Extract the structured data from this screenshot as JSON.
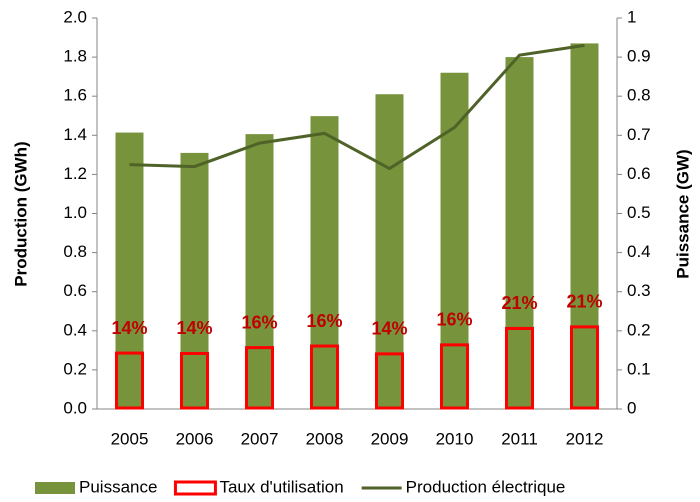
{
  "chart_data": {
    "type": "bar",
    "categories": [
      "2005",
      "2006",
      "2007",
      "2008",
      "2009",
      "2010",
      "2011",
      "2012"
    ],
    "y_label": "Production (GWh)",
    "y2_label": "Puissance (GW)",
    "ylim": [
      0,
      2
    ],
    "yticks": [
      {
        "value": 0,
        "label": "0.0"
      },
      0.2,
      0.4,
      0.6,
      0.8,
      {
        "value": 1,
        "label": "1.0"
      },
      1.2,
      1.4,
      1.6,
      1.8,
      {
        "value": 2,
        "label": "2.0"
      }
    ],
    "y2lim": [
      0,
      1
    ],
    "y2ticks": [
      0,
      0.1,
      0.2,
      0.3,
      0.4,
      0.5,
      0.6,
      0.7,
      0.8,
      0.9,
      1
    ],
    "grid": false,
    "legend": "bottom",
    "series": [
      {
        "name": "Puissance",
        "type": "bar",
        "axis": "y2",
        "color": "#77933c",
        "values": [
          0.707,
          0.655,
          0.703,
          0.749,
          0.805,
          0.86,
          0.9,
          0.935
        ]
      },
      {
        "name": "Taux d'utilisation",
        "type": "outline-bar",
        "axis": "y2",
        "color": "#ff0000",
        "values": [
          0.143,
          0.142,
          0.157,
          0.161,
          0.141,
          0.164,
          0.206,
          0.21
        ],
        "value_labels": [
          "14%",
          "14%",
          "16%",
          "16%",
          "14%",
          "16%",
          "21%",
          "21%"
        ]
      },
      {
        "name": "Production électrique",
        "type": "line",
        "axis": "y",
        "color": "#4f6228",
        "values": [
          1.25,
          1.24,
          1.36,
          1.41,
          1.23,
          1.44,
          1.81,
          1.86
        ]
      }
    ]
  }
}
